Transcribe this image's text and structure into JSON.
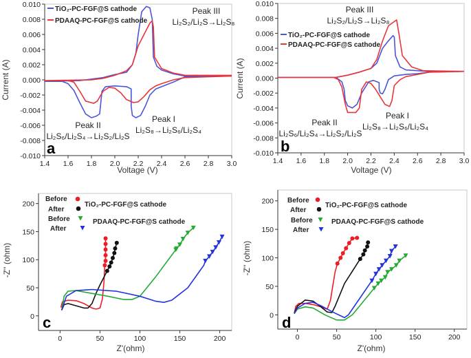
{
  "chart_data": [
    {
      "panel": "a",
      "type": "line",
      "xlabel": "Voltage (V)",
      "ylabel": "Current (A)",
      "xlim": [
        1.4,
        3.0
      ],
      "ylim": [
        -0.01,
        0.01
      ],
      "xticks": [
        "1.4",
        "1.6",
        "1.8",
        "2.0",
        "2.2",
        "2.4",
        "2.6",
        "2.8",
        "3.0"
      ],
      "yticks": [
        "0.010",
        "0.008",
        "0.006",
        "0.004",
        "0.002",
        "0.000",
        "-0.002",
        "-0.004",
        "-0.006",
        "-0.008",
        "-0.010"
      ],
      "grid": false,
      "legend": "top-left",
      "annotations": [
        "Peak III",
        "Li₂S₂/Li₂S→Li₂S₈",
        "Peak II",
        "Li₂S₆/Li₂S₄→Li₂S₂/Li₂S",
        "Peak I",
        "Li₂S₈→Li₂S₆/Li₂S₄"
      ],
      "series": [
        {
          "name": "TiO₂-PC-FGF@S cathode",
          "color": "#4a55d8",
          "x": [
            3.0,
            2.6,
            2.5,
            2.4,
            2.35,
            2.3,
            2.26,
            2.22,
            2.18,
            2.15,
            2.14,
            2.14,
            2.1,
            2.0,
            1.92,
            1.89,
            1.87,
            1.84,
            1.8,
            1.75,
            1.7,
            1.65,
            1.6,
            1.55,
            1.4,
            1.7,
            1.9,
            2.0,
            2.1,
            2.15,
            2.18,
            2.2,
            2.23,
            2.27,
            2.3,
            2.32,
            2.33,
            2.36,
            2.4,
            2.5,
            2.6,
            3.0
          ],
          "y": [
            0.0005,
            0.0004,
            -0.0003,
            -0.0009,
            -0.0012,
            -0.002,
            -0.0035,
            -0.0047,
            -0.005,
            -0.0047,
            -0.0035,
            -0.0012,
            -0.0009,
            -0.0008,
            -0.0009,
            -0.0015,
            -0.0045,
            -0.0048,
            -0.005,
            -0.0045,
            -0.003,
            -0.0014,
            -0.0005,
            -0.0002,
            -0.0002,
            -0.0001,
            0.0003,
            0.0007,
            0.001,
            0.002,
            0.0035,
            0.006,
            0.009,
            0.0097,
            0.0095,
            0.008,
            0.003,
            0.0018,
            0.0013,
            0.0008,
            0.0005,
            0.0005
          ]
        },
        {
          "name": "PDAAQ-PC-FGF@S cathode",
          "color": "#e8353a",
          "x": [
            3.0,
            2.6,
            2.5,
            2.4,
            2.35,
            2.3,
            2.25,
            2.2,
            2.16,
            2.1,
            2.05,
            2.0,
            1.95,
            1.9,
            1.85,
            1.82,
            1.75,
            1.7,
            1.65,
            1.6,
            1.4,
            1.8,
            1.9,
            2.0,
            2.1,
            2.15,
            2.2,
            2.25,
            2.3,
            2.32,
            2.33,
            2.34,
            2.4,
            2.5,
            2.6,
            3.0
          ],
          "y": [
            0.0005,
            0.0003,
            0.0,
            -0.0005,
            -0.0008,
            -0.0013,
            -0.0022,
            -0.0029,
            -0.003,
            -0.0026,
            -0.0017,
            -0.0011,
            -0.001,
            -0.0015,
            -0.0028,
            -0.0031,
            -0.0028,
            -0.0015,
            -0.0003,
            -0.0001,
            -0.0001,
            0.0,
            0.0002,
            0.0006,
            0.0012,
            0.002,
            0.0045,
            0.006,
            0.0075,
            0.0078,
            0.007,
            0.003,
            0.0015,
            0.0009,
            0.0006,
            0.0006
          ]
        }
      ]
    },
    {
      "panel": "b",
      "type": "line",
      "xlabel": "Voltage (V)",
      "ylabel": "Current (A)",
      "xlim": [
        1.4,
        3.0
      ],
      "ylim": [
        -0.01,
        0.01
      ],
      "xticks": [
        "1.4",
        "1.6",
        "1.8",
        "2.0",
        "2.2",
        "2.4",
        "2.6",
        "2.8",
        "3.0"
      ],
      "yticks": [
        "0.010",
        "0.008",
        "0.006",
        "0.004",
        "0.002",
        "0.000",
        "-0.002",
        "-0.004",
        "-0.006",
        "-0.008",
        "-0.010"
      ],
      "grid": false,
      "legend": "upper-left",
      "annotations": [
        "Peak III",
        "Li₂S₂/Li₂S→Li₂S₈",
        "Peak II",
        "Li₂S₆/Li₂S₄→Li₂S₂/Li₂S",
        "Peak I",
        "Li₂S₈→Li₂S₆/Li₂S₄"
      ],
      "series": [
        {
          "name": "TiO₂-PC-FGF@S cathode",
          "color": "#4a55d8",
          "x": [
            3.0,
            2.7,
            2.6,
            2.5,
            2.4,
            2.35,
            2.32,
            2.3,
            2.28,
            2.27,
            2.27,
            2.22,
            2.18,
            2.12,
            2.08,
            2.04,
            2.0,
            1.98,
            1.97,
            1.95,
            1.9,
            1.4,
            1.9,
            2.0,
            2.1,
            2.2,
            2.25,
            2.3,
            2.35,
            2.39,
            2.4,
            2.41,
            2.45,
            2.5,
            2.6,
            2.7,
            3.0
          ],
          "y": [
            0.0009,
            0.0008,
            0.0006,
            0.0005,
            0.0003,
            -0.0002,
            -0.0015,
            -0.0021,
            -0.002,
            -0.0015,
            -0.0006,
            -0.0003,
            -0.0005,
            -0.002,
            -0.0035,
            -0.004,
            -0.0037,
            -0.003,
            -0.0015,
            -0.0005,
            0.0001,
            0.0001,
            0.0001,
            0.0004,
            0.0008,
            0.0013,
            0.002,
            0.004,
            0.005,
            0.0057,
            0.0055,
            0.003,
            0.0015,
            0.0011,
            0.001,
            0.0009,
            0.0009
          ]
        },
        {
          "name": "PDAAQ-PC-FGF@S cathode",
          "color": "#e8353a",
          "x": [
            3.0,
            2.7,
            2.6,
            2.5,
            2.45,
            2.4,
            2.38,
            2.36,
            2.32,
            2.28,
            2.24,
            2.2,
            2.16,
            2.12,
            2.1,
            2.07,
            2.0,
            1.98,
            1.95,
            1.92,
            1.88,
            1.4,
            1.9,
            2.0,
            2.1,
            2.2,
            2.25,
            2.3,
            2.35,
            2.42,
            2.44,
            2.47,
            2.55,
            2.65,
            3.0
          ],
          "y": [
            0.0009,
            0.0008,
            0.0005,
            0.0002,
            -0.0002,
            -0.001,
            -0.003,
            -0.0038,
            -0.0035,
            -0.0025,
            -0.0015,
            -0.0007,
            -0.0005,
            -0.0015,
            -0.004,
            -0.0046,
            -0.0046,
            -0.0035,
            -0.0012,
            -0.0002,
            0.0001,
            0.0001,
            0.0001,
            0.0004,
            0.0008,
            0.0013,
            0.0025,
            0.005,
            0.007,
            0.0078,
            0.006,
            0.003,
            0.0015,
            0.001,
            0.0009
          ]
        }
      ]
    },
    {
      "panel": "c",
      "type": "scatter",
      "xlabel": "Z'(ohm)",
      "ylabel": "-Z'' (ohm)",
      "xlim": [
        -27,
        215
      ],
      "ylim": [
        -26,
        218
      ],
      "xticks": [
        "0",
        "50",
        "100",
        "150",
        "200"
      ],
      "yticks": [
        "0",
        "50",
        "100",
        "150",
        "200"
      ],
      "grid": false,
      "legend": "top-left",
      "legend_groups": [
        "TiO₂-PC-FGF@S cathode",
        "PDAAQ-PC-FGF@S cathode"
      ],
      "series": [
        {
          "name": "Before",
          "group": "TiO₂-PC-FGF@S cathode",
          "color": "#ee1c25",
          "marker": "circle",
          "x": [
            1,
            3,
            10,
            20,
            30,
            40,
            45,
            50,
            53,
            55,
            56,
            57,
            57,
            57,
            57,
            57
          ],
          "y": [
            15,
            25,
            28,
            27,
            22,
            14,
            12,
            14,
            30,
            60,
            90,
            98,
            108,
            118,
            128,
            138
          ]
        },
        {
          "name": "After",
          "group": "TiO₂-PC-FGF@S cathode",
          "color": "#111111",
          "marker": "circle",
          "x": [
            2,
            5,
            10,
            20,
            30,
            35,
            40,
            45,
            50,
            56,
            59,
            62,
            64,
            66,
            68,
            69,
            71
          ],
          "y": [
            10,
            20,
            22,
            18,
            14,
            14,
            22,
            40,
            55,
            72,
            80,
            88,
            95,
            103,
            112,
            120,
            130
          ]
        },
        {
          "name": "Before",
          "group": "PDAAQ-PC-FGF@S cathode",
          "color": "#22aa33",
          "marker": "triangle-down",
          "x": [
            2,
            5,
            10,
            20,
            40,
            60,
            80,
            90,
            100,
            120,
            145,
            146,
            150,
            154,
            160,
            167
          ],
          "y": [
            10,
            35,
            44,
            45,
            40,
            35,
            29,
            29,
            35,
            70,
            118,
            120,
            127,
            137,
            148,
            157
          ]
        },
        {
          "name": "After",
          "group": "PDAAQ-PC-FGF@S cathode",
          "color": "#2233dd",
          "marker": "triangle-down",
          "x": [
            2,
            8,
            20,
            40,
            70,
            100,
            120,
            130,
            140,
            160,
            180,
            182,
            187,
            191,
            195,
            199,
            203
          ],
          "y": [
            10,
            35,
            45,
            47,
            44,
            35,
            26,
            24,
            28,
            50,
            90,
            98,
            106,
            114,
            122,
            131,
            141
          ]
        }
      ]
    },
    {
      "panel": "d",
      "type": "scatter",
      "xlabel": "Z'(ohm)",
      "ylabel": "-Z'' (ohm)",
      "xlim": [
        -25,
        216
      ],
      "ylim": [
        -25,
        219
      ],
      "xticks": [
        "0",
        "50",
        "100",
        "150",
        "200"
      ],
      "yticks": [
        "0",
        "50",
        "100",
        "150",
        "200"
      ],
      "grid": false,
      "legend": "top-left",
      "legend_groups": [
        "TiO₂-PC-FGF@S cathode",
        "PDAAQ-PC-FGF@S cathode"
      ],
      "series": [
        {
          "name": "Before",
          "group": "TiO₂-PC-FGF@S cathode",
          "color": "#ee1c25",
          "marker": "circle",
          "x": [
            -4,
            -2,
            2,
            10,
            20,
            30,
            38,
            42,
            45,
            48,
            51,
            55,
            58,
            62,
            66,
            70,
            76
          ],
          "y": [
            3,
            15,
            20,
            20,
            18,
            14,
            10,
            25,
            50,
            75,
            90,
            100,
            108,
            117,
            126,
            134,
            135
          ]
        },
        {
          "name": "After",
          "group": "TiO₂-PC-FGF@S cathode",
          "color": "#111111",
          "marker": "circle",
          "x": [
            -4,
            0,
            10,
            20,
            30,
            38,
            44,
            48,
            60,
            80,
            84,
            86,
            89,
            90
          ],
          "y": [
            3,
            15,
            26,
            24,
            14,
            5,
            4,
            15,
            55,
            98,
            106,
            113,
            120,
            127
          ]
        },
        {
          "name": "Before",
          "group": "PDAAQ-PC-FGF@S cathode",
          "color": "#22aa33",
          "marker": "triangle-down",
          "x": [
            -4,
            0,
            10,
            20,
            35,
            50,
            60,
            70,
            85,
            98,
            103,
            107,
            112,
            115,
            120,
            126,
            130,
            138
          ],
          "y": [
            2,
            10,
            14,
            12,
            0,
            -9,
            -9,
            0,
            25,
            47,
            55,
            60,
            66,
            75,
            80,
            87,
            95,
            104
          ]
        },
        {
          "name": "After",
          "group": "PDAAQ-PC-FGF@S cathode",
          "color": "#2233dd",
          "marker": "triangle-down",
          "x": [
            -4,
            0,
            10,
            20,
            30,
            45,
            60,
            65,
            80,
            95,
            100,
            104,
            108,
            113,
            118,
            120,
            125
          ],
          "y": [
            2,
            12,
            20,
            22,
            16,
            5,
            -5,
            0,
            30,
            60,
            72,
            80,
            87,
            95,
            103,
            112,
            120
          ]
        }
      ]
    }
  ]
}
